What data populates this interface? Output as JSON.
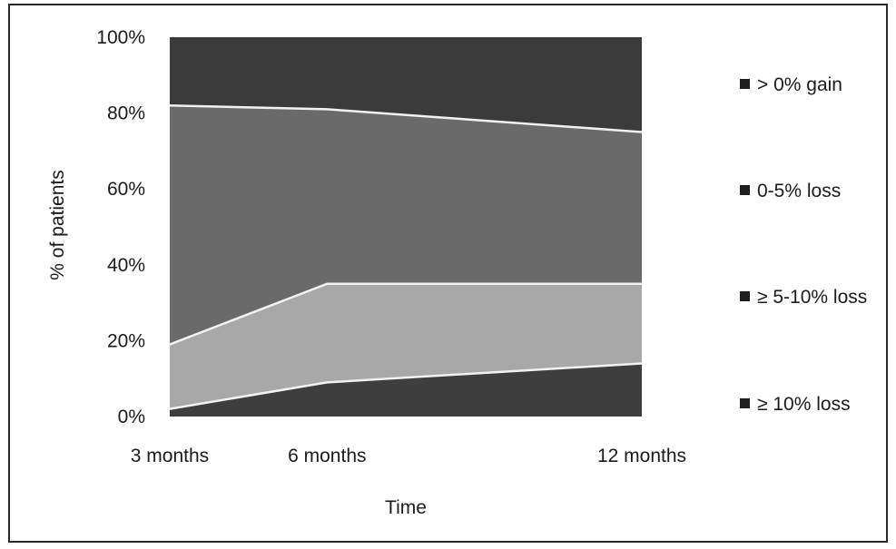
{
  "chart_data": {
    "type": "area",
    "stacked": true,
    "percent_stacked": true,
    "categories": [
      "3 months",
      "6 months",
      "12 months"
    ],
    "x_positions_months": [
      3,
      6,
      12
    ],
    "series": [
      {
        "name": "≥ 10% loss",
        "values": [
          2,
          9,
          14
        ],
        "color": "#3e3e3e"
      },
      {
        "name": "≥ 5-10% loss",
        "values": [
          17,
          26,
          21
        ],
        "color": "#a8a8a8"
      },
      {
        "name": "0-5% loss",
        "values": [
          63,
          46,
          40
        ],
        "color": "#6a6a6a"
      },
      {
        "name": "> 0% gain",
        "values": [
          18,
          19,
          25
        ],
        "color": "#3b3b3b"
      }
    ],
    "legend_order": [
      "> 0% gain",
      "0-5% loss",
      "≥ 5-10% loss",
      "≥ 10% loss"
    ],
    "y_ticks": [
      "0%",
      "20%",
      "40%",
      "60%",
      "80%",
      "100%"
    ],
    "ylim": [
      0,
      100
    ],
    "xlabel": "Time",
    "ylabel": "% of patients",
    "legend_position": "right",
    "grid": false,
    "boundary_line_color": "#f2f2f2"
  }
}
